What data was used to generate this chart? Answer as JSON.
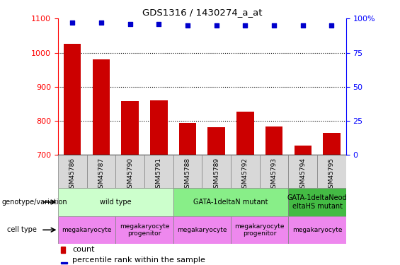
{
  "title": "GDS1316 / 1430274_a_at",
  "samples": [
    "GSM45786",
    "GSM45787",
    "GSM45790",
    "GSM45791",
    "GSM45788",
    "GSM45789",
    "GSM45792",
    "GSM45793",
    "GSM45794",
    "GSM45795"
  ],
  "counts": [
    1025,
    980,
    858,
    860,
    793,
    782,
    828,
    784,
    727,
    765
  ],
  "percentiles": [
    97,
    97,
    96,
    96,
    95,
    95,
    95,
    95,
    95,
    95
  ],
  "ylim_left": [
    700,
    1100
  ],
  "ylim_right": [
    0,
    100
  ],
  "yticks_left": [
    700,
    800,
    900,
    1000,
    1100
  ],
  "yticks_right": [
    0,
    25,
    50,
    75,
    100
  ],
  "bar_color": "#cc0000",
  "dot_color": "#0000cc",
  "genotype_groups": [
    {
      "label": "wild type",
      "start": 0,
      "end": 4,
      "color": "#ccffcc"
    },
    {
      "label": "GATA-1deltaN mutant",
      "start": 4,
      "end": 8,
      "color": "#88ee88"
    },
    {
      "label": "GATA-1deltaNeod\neltaHS mutant",
      "start": 8,
      "end": 10,
      "color": "#44bb44"
    }
  ],
  "cell_type_groups": [
    {
      "label": "megakaryocyte",
      "start": 0,
      "end": 2
    },
    {
      "label": "megakaryocyte\nprogenitor",
      "start": 2,
      "end": 4
    },
    {
      "label": "megakaryocyte",
      "start": 4,
      "end": 6
    },
    {
      "label": "megakaryocyte\nprogenitor",
      "start": 6,
      "end": 8
    },
    {
      "label": "megakaryocyte",
      "start": 8,
      "end": 10
    }
  ],
  "cell_type_color": "#ee88ee",
  "sample_box_color": "#d8d8d8",
  "genotype_label": "genotype/variation",
  "cell_type_label": "cell type",
  "legend_count_label": "count",
  "legend_pct_label": "percentile rank within the sample",
  "dotted_grid_values": [
    800,
    900,
    1000
  ]
}
